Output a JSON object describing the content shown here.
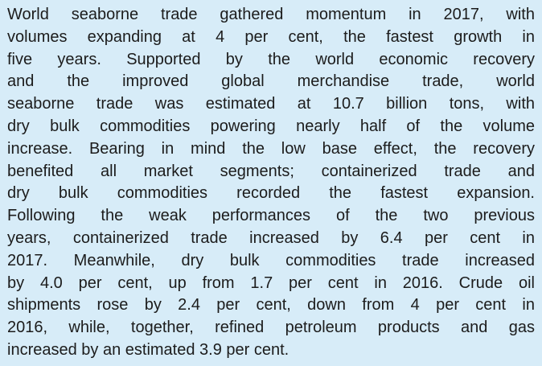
{
  "paragraph": {
    "lines": [
      "World seaborne trade gathered momentum in 2017, with",
      "volumes expanding at 4 per cent, the fastest growth in",
      "five years. Supported by the world economic recovery",
      "and the improved global merchandise trade, world",
      "seaborne trade was estimated at 10.7 billion tons, with",
      "dry bulk commodities powering nearly half of the volume",
      "increase. Bearing in mind the low base effect, the recovery",
      "benefited all market segments; containerized trade and",
      "dry bulk commodities recorded the fastest expansion.",
      "Following the weak performances of the two previous",
      "years, containerized trade increased by 6.4 per cent in",
      "2017. Meanwhile, dry bulk commodities trade increased",
      "by 4.0 per cent, up from 1.7 per cent in 2016. Crude oil",
      "shipments rose by 2.4 per cent, down from 4 per cent in",
      "2016, while, together, refined petroleum products and gas",
      "increased by an estimated 3.9 per cent."
    ]
  }
}
